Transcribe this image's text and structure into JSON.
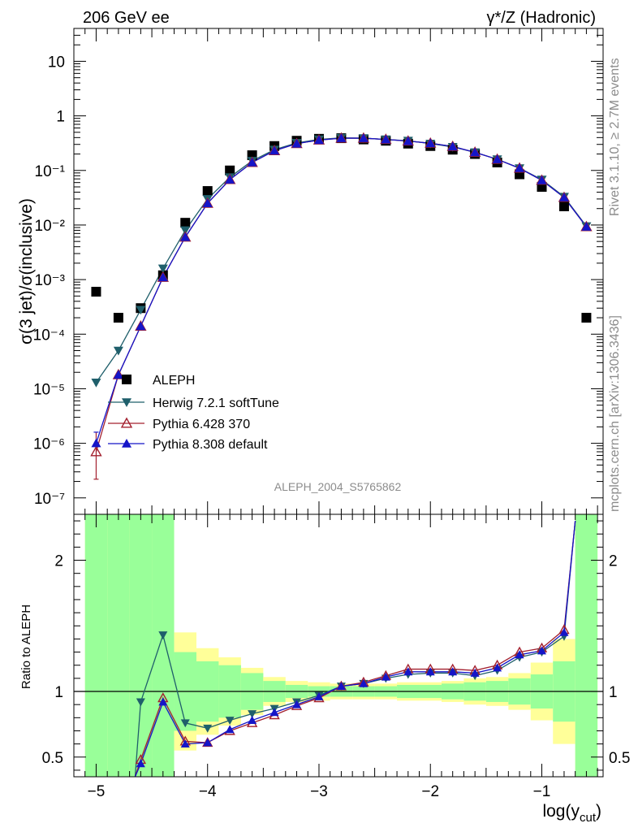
{
  "header": {
    "left": "206 GeV ee",
    "right": "γ*/Z (Hadronic)"
  },
  "side_text": {
    "rivet": "Rivet 3.1.10, ≥ 2.7M events",
    "mcplots": "mcplots.cern.ch [arXiv:1306.3436]"
  },
  "analysis_id": "ALEPH_2004_S5765862",
  "chart_data": [
    {
      "type": "scatter",
      "panel": "main",
      "ylabel": "σ(3 jet)/σ(inclusive)",
      "xlabel": "",
      "y_scale": "log",
      "xlim": [
        -5.2,
        -0.45
      ],
      "ylim": [
        5e-08,
        40
      ],
      "y_tick_labels": [
        "10⁻⁷",
        "10⁻⁶",
        "10⁻⁵",
        "10⁻⁴",
        "10⁻³",
        "10⁻²",
        "10⁻¹",
        "1",
        "10"
      ],
      "x": [
        -5.0,
        -4.8,
        -4.6,
        -4.4,
        -4.2,
        -4.0,
        -3.8,
        -3.6,
        -3.4,
        -3.2,
        -3.0,
        -2.8,
        -2.6,
        -2.4,
        -2.2,
        -2.0,
        -1.8,
        -1.6,
        -1.4,
        -1.2,
        -1.0,
        -0.8,
        -0.6
      ],
      "legend": {
        "placement": "lower-left",
        "entries": [
          "ALEPH",
          "Herwig 7.2.1 softTune",
          "Pythia 6.428 370",
          "Pythia 8.308 default"
        ]
      },
      "series": [
        {
          "name": "ALEPH",
          "color": "#000000",
          "marker": "square",
          "values": [
            0.0006,
            0.0002,
            0.0003,
            0.0012,
            0.011,
            0.042,
            0.1,
            0.19,
            0.28,
            0.35,
            0.38,
            0.39,
            0.37,
            0.35,
            0.31,
            0.28,
            0.24,
            0.2,
            0.14,
            0.085,
            0.05,
            0.022,
            0.0002
          ]
        },
        {
          "name": "Herwig 7.2.1 softTune",
          "color": "#1f5f6b",
          "marker": "triangle-down",
          "values": [
            1.3e-05,
            5e-05,
            0.00028,
            0.0016,
            0.008,
            0.03,
            0.075,
            0.15,
            0.24,
            0.32,
            0.37,
            0.395,
            0.39,
            0.37,
            0.35,
            0.31,
            0.27,
            0.215,
            0.16,
            0.11,
            0.068,
            0.033,
            0.0095
          ]
        },
        {
          "name": "Pythia 6.428 370",
          "color": "#a3202f",
          "marker": "triangle-up-open",
          "values": [
            7e-07,
            1.8e-05,
            0.00014,
            0.0011,
            0.006,
            0.025,
            0.068,
            0.14,
            0.23,
            0.31,
            0.36,
            0.39,
            0.39,
            0.37,
            0.345,
            0.315,
            0.275,
            0.215,
            0.16,
            0.11,
            0.066,
            0.032,
            0.0093
          ]
        },
        {
          "name": "Pythia 8.308 default",
          "color": "#1515c8",
          "marker": "triangle-up",
          "values": [
            1e-06,
            1.8e-05,
            0.00014,
            0.0011,
            0.006,
            0.025,
            0.068,
            0.14,
            0.23,
            0.31,
            0.36,
            0.39,
            0.39,
            0.37,
            0.345,
            0.315,
            0.275,
            0.215,
            0.16,
            0.11,
            0.066,
            0.032,
            0.0093
          ]
        }
      ]
    },
    {
      "type": "line",
      "panel": "ratio",
      "ylabel": "Ratio to ALEPH",
      "xlabel": "log(y",
      "xlabel_subscript": "cut",
      "xlabel_suffix": ")",
      "xlim": [
        -5.2,
        -0.45
      ],
      "ylim": [
        0.35,
        2.35
      ],
      "x_tick_labels": [
        "−5",
        "−4",
        "−3",
        "−2",
        "−1"
      ],
      "y_tick_labels": [
        "0.5",
        "1",
        "2"
      ],
      "reference_line": 1,
      "uncertainty_bands": {
        "bin_edges": [
          -5.1,
          -4.9,
          -4.7,
          -4.5,
          -4.3,
          -4.1,
          -3.9,
          -3.7,
          -3.5,
          -3.3,
          -3.1,
          -2.9,
          -2.7,
          -2.5,
          -2.3,
          -2.1,
          -1.9,
          -1.7,
          -1.5,
          -1.3,
          -1.1,
          -0.9,
          -0.7,
          -0.5
        ],
        "stat_color": "#99ff99",
        "total_color": "#ffff99",
        "inner_half_width": [
          10,
          10,
          10,
          10,
          0.3,
          0.23,
          0.2,
          0.14,
          0.08,
          0.05,
          0.04,
          0.04,
          0.04,
          0.04,
          0.05,
          0.05,
          0.06,
          0.07,
          0.08,
          0.1,
          0.13,
          0.23,
          10
        ],
        "outer_half_width": [
          10,
          10,
          10,
          10,
          0.45,
          0.33,
          0.26,
          0.18,
          0.11,
          0.08,
          0.07,
          0.06,
          0.06,
          0.06,
          0.07,
          0.07,
          0.08,
          0.1,
          0.11,
          0.14,
          0.22,
          0.4,
          10
        ]
      },
      "series": [
        {
          "name": "Herwig 7.2.1 softTune",
          "color": "#1f5f6b",
          "x": [
            -4.65,
            -4.6,
            -4.4,
            -4.2,
            -4.0,
            -3.8,
            -3.6,
            -3.4,
            -3.2,
            -3.0,
            -2.8,
            -2.6,
            -2.4,
            -2.2,
            -2.0,
            -1.8,
            -1.6,
            -1.4,
            -1.2,
            -1.0,
            -0.8,
            -0.7
          ],
          "values": [
            0.35,
            0.92,
            1.43,
            0.76,
            0.72,
            0.78,
            0.83,
            0.87,
            0.92,
            0.97,
            1.04,
            1.06,
            1.1,
            1.13,
            1.14,
            1.14,
            1.12,
            1.16,
            1.26,
            1.3,
            1.42,
            2.3
          ]
        },
        {
          "name": "Pythia 6.428 370",
          "color": "#a3202f",
          "x": [
            -4.65,
            -4.6,
            -4.4,
            -4.2,
            -4.0,
            -3.8,
            -3.6,
            -3.4,
            -3.2,
            -3.0,
            -2.8,
            -2.6,
            -2.4,
            -2.2,
            -2.0,
            -1.8,
            -1.6,
            -1.4,
            -1.2,
            -1.0,
            -0.8,
            -0.7
          ],
          "values": [
            0.35,
            0.48,
            0.95,
            0.62,
            0.61,
            0.7,
            0.76,
            0.82,
            0.89,
            0.95,
            1.04,
            1.07,
            1.12,
            1.17,
            1.17,
            1.17,
            1.16,
            1.2,
            1.3,
            1.33,
            1.47,
            2.3
          ]
        },
        {
          "name": "Pythia 8.308 default",
          "color": "#1515c8",
          "x": [
            -4.65,
            -4.6,
            -4.4,
            -4.2,
            -4.0,
            -3.8,
            -3.6,
            -3.4,
            -3.2,
            -3.0,
            -2.8,
            -2.6,
            -2.4,
            -2.2,
            -2.0,
            -1.8,
            -1.6,
            -1.4,
            -1.2,
            -1.0,
            -0.8,
            -0.7
          ],
          "values": [
            0.35,
            0.45,
            0.92,
            0.6,
            0.61,
            0.71,
            0.78,
            0.84,
            0.9,
            0.96,
            1.04,
            1.06,
            1.11,
            1.15,
            1.15,
            1.15,
            1.14,
            1.18,
            1.28,
            1.31,
            1.45,
            2.3
          ]
        }
      ]
    }
  ]
}
